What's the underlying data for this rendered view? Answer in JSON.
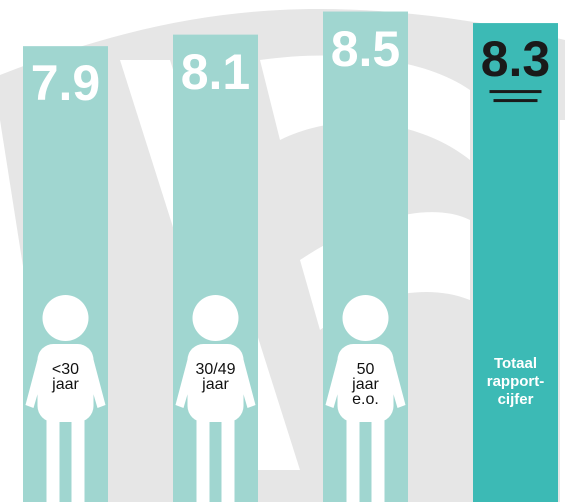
{
  "chart_data": {
    "type": "bar",
    "categories": [
      "<30\njaar",
      "30/49\njaar",
      "50\njaar\ne.o.",
      "Totaal\nrapport-\ncijfer"
    ],
    "values": [
      7.9,
      8.1,
      8.5,
      8.3
    ],
    "colors": [
      "#a0d6d0",
      "#a0d6d0",
      "#a0d6d0",
      "#3cbab5"
    ],
    "ylim": [
      0,
      8.7
    ]
  }
}
